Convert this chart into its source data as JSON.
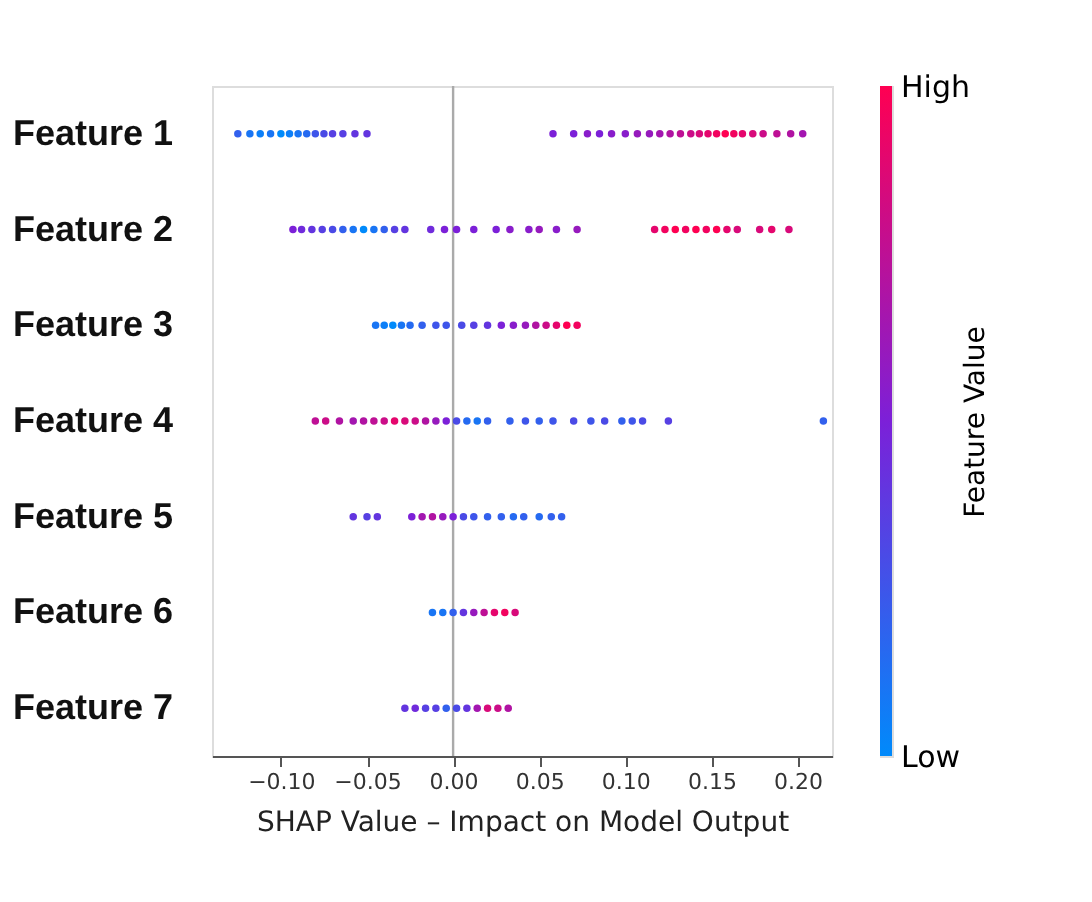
{
  "chart_data": {
    "type": "scatter",
    "orientation": "horizontal",
    "xlabel": "SHAP Value – Impact on Model Output",
    "clabel": "Feature Value",
    "categories": [
      "Feature 1",
      "Feature 2",
      "Feature 3",
      "Feature 4",
      "Feature 5",
      "Feature 6",
      "Feature 7"
    ],
    "xlim": [
      -0.14,
      0.22
    ],
    "xticks": [
      {
        "value": -0.1,
        "label": "−0.10"
      },
      {
        "value": -0.05,
        "label": "−0.05"
      },
      {
        "value": 0,
        "label": "0.00"
      },
      {
        "value": 0.05,
        "label": "0.05"
      },
      {
        "value": 0.1,
        "label": "0.10"
      },
      {
        "value": 0.15,
        "label": "0.15"
      },
      {
        "value": 0.2,
        "label": "0.20"
      }
    ],
    "clim": [
      0,
      1
    ],
    "cticks": [
      {
        "value": 0,
        "label": "Low"
      },
      {
        "value": 1,
        "label": "High"
      }
    ],
    "ref_lines": [
      {
        "axis": "x",
        "value": 0,
        "color": "#aaaaaa"
      }
    ],
    "grid": false,
    "marker": "circle",
    "series": [
      {
        "x": [
          "Feature 1",
          "Feature 1",
          "Feature 1",
          "Feature 1",
          "Feature 1",
          "Feature 1",
          "Feature 1",
          "Feature 1",
          "Feature 1",
          "Feature 1",
          "Feature 1",
          "Feature 1",
          "Feature 1",
          "Feature 1",
          "Feature 1",
          "Feature 1",
          "Feature 1",
          "Feature 1",
          "Feature 1",
          "Feature 1",
          "Feature 1",
          "Feature 1",
          "Feature 1",
          "Feature 1",
          "Feature 1",
          "Feature 1",
          "Feature 1",
          "Feature 1",
          "Feature 1",
          "Feature 1",
          "Feature 1",
          "Feature 1",
          "Feature 1",
          "Feature 1",
          "Feature 1",
          "Feature 1",
          "Feature 1"
        ],
        "values": [
          -0.125,
          -0.118,
          -0.112,
          -0.106,
          -0.1,
          -0.095,
          -0.09,
          -0.085,
          -0.08,
          -0.075,
          -0.07,
          -0.064,
          -0.057,
          -0.05,
          0.058,
          0.07,
          0.078,
          0.085,
          0.092,
          0.1,
          0.107,
          0.114,
          0.12,
          0.126,
          0.132,
          0.138,
          0.143,
          0.148,
          0.153,
          0.158,
          0.163,
          0.168,
          0.174,
          0.18,
          0.188,
          0.196,
          0.203
        ],
        "colors": [
          "#3260ed",
          "#1975f4",
          "#0c7ff8",
          "#1975f4",
          "#008afb",
          "#0c7ff8",
          "#1975f4",
          "#256af1",
          "#3e55ea",
          "#4a4ae6",
          "#5740e3",
          "#5740e3",
          "#6335df",
          "#6335df",
          "#7c20d8",
          "#7c20d8",
          "#891dcb",
          "#7c20d8",
          "#891dcb",
          "#891dcb",
          "#961abd",
          "#961abd",
          "#a316b0",
          "#b013a2",
          "#be1095",
          "#cb0d88",
          "#d80a7a",
          "#e5066d",
          "#f2035f",
          "#ff0052",
          "#f2035f",
          "#e5066d",
          "#d80a7a",
          "#cb0d88",
          "#be1095",
          "#b013a2",
          "#a316b0"
        ]
      },
      {
        "x": [
          "Feature 2",
          "Feature 2",
          "Feature 2",
          "Feature 2",
          "Feature 2",
          "Feature 2",
          "Feature 2",
          "Feature 2",
          "Feature 2",
          "Feature 2",
          "Feature 2",
          "Feature 2",
          "Feature 2",
          "Feature 2",
          "Feature 2",
          "Feature 2",
          "Feature 2",
          "Feature 2",
          "Feature 2",
          "Feature 2",
          "Feature 2",
          "Feature 2",
          "Feature 2",
          "Feature 2",
          "Feature 2",
          "Feature 2",
          "Feature 2",
          "Feature 2",
          "Feature 2",
          "Feature 2",
          "Feature 2",
          "Feature 2",
          "Feature 2",
          "Feature 2"
        ],
        "values": [
          -0.093,
          -0.088,
          -0.082,
          -0.076,
          -0.07,
          -0.064,
          -0.058,
          -0.052,
          -0.046,
          -0.04,
          -0.034,
          -0.028,
          -0.013,
          -0.005,
          0.002,
          0.012,
          0.025,
          0.033,
          0.044,
          0.05,
          0.06,
          0.072,
          0.117,
          0.123,
          0.129,
          0.135,
          0.141,
          0.147,
          0.153,
          0.159,
          0.165,
          0.178,
          0.185,
          0.195
        ],
        "colors": [
          "#7c20d8",
          "#702bdc",
          "#6335df",
          "#5740e3",
          "#4a4ae6",
          "#3260ed",
          "#1975f4",
          "#008afb",
          "#1975f4",
          "#3260ed",
          "#5740e3",
          "#6335df",
          "#702bdc",
          "#7c20d8",
          "#7c20d8",
          "#7c20d8",
          "#7c20d8",
          "#891dcb",
          "#891dcb",
          "#961abd",
          "#891dcb",
          "#961abd",
          "#e5066d",
          "#f2035f",
          "#ff0052",
          "#f2035f",
          "#ff0052",
          "#f2035f",
          "#ff0052",
          "#e5066d",
          "#d80a7a",
          "#d80a7a",
          "#e5066d",
          "#d80a7a"
        ]
      },
      {
        "x": [
          "Feature 3",
          "Feature 3",
          "Feature 3",
          "Feature 3",
          "Feature 3",
          "Feature 3",
          "Feature 3",
          "Feature 3",
          "Feature 3",
          "Feature 3",
          "Feature 3",
          "Feature 3",
          "Feature 3",
          "Feature 3",
          "Feature 3",
          "Feature 3",
          "Feature 3",
          "Feature 3",
          "Feature 3"
        ],
        "values": [
          -0.045,
          -0.04,
          -0.035,
          -0.03,
          -0.025,
          -0.018,
          -0.01,
          -0.004,
          0.005,
          0.012,
          0.02,
          0.028,
          0.035,
          0.042,
          0.048,
          0.054,
          0.06,
          0.066,
          0.072
        ],
        "colors": [
          "#1975f4",
          "#0c7ff8",
          "#008afb",
          "#1975f4",
          "#256af1",
          "#3260ed",
          "#3e55ea",
          "#3e55ea",
          "#4a4ae6",
          "#5740e3",
          "#6335df",
          "#7c20d8",
          "#891dcb",
          "#961abd",
          "#b013a2",
          "#cb0d88",
          "#e5066d",
          "#ff0052",
          "#f2035f"
        ]
      },
      {
        "x": [
          "Feature 4",
          "Feature 4",
          "Feature 4",
          "Feature 4",
          "Feature 4",
          "Feature 4",
          "Feature 4",
          "Feature 4",
          "Feature 4",
          "Feature 4",
          "Feature 4",
          "Feature 4",
          "Feature 4",
          "Feature 4",
          "Feature 4",
          "Feature 4",
          "Feature 4",
          "Feature 4",
          "Feature 4",
          "Feature 4",
          "Feature 4",
          "Feature 4",
          "Feature 4",
          "Feature 4",
          "Feature 4",
          "Feature 4",
          "Feature 4",
          "Feature 4",
          "Feature 4"
        ],
        "values": [
          -0.08,
          -0.074,
          -0.066,
          -0.058,
          -0.052,
          -0.046,
          -0.04,
          -0.034,
          -0.028,
          -0.022,
          -0.016,
          -0.01,
          -0.004,
          0.002,
          0.008,
          0.014,
          0.02,
          0.033,
          0.042,
          0.05,
          0.058,
          0.07,
          0.08,
          0.088,
          0.098,
          0.104,
          0.11,
          0.125,
          0.215
        ],
        "colors": [
          "#be1095",
          "#cb0d88",
          "#b013a2",
          "#a316b0",
          "#b013a2",
          "#be1095",
          "#cb0d88",
          "#e5066d",
          "#d80a7a",
          "#cb0d88",
          "#b013a2",
          "#961abd",
          "#7c20d8",
          "#4a4ae6",
          "#256af1",
          "#1975f4",
          "#3260ed",
          "#3260ed",
          "#3e55ea",
          "#3260ed",
          "#3e55ea",
          "#4a4ae6",
          "#3e55ea",
          "#4a4ae6",
          "#3260ed",
          "#3e55ea",
          "#4a4ae6",
          "#5740e3",
          "#3260ed"
        ]
      },
      {
        "x": [
          "Feature 5",
          "Feature 5",
          "Feature 5",
          "Feature 5",
          "Feature 5",
          "Feature 5",
          "Feature 5",
          "Feature 5",
          "Feature 5",
          "Feature 5",
          "Feature 5",
          "Feature 5",
          "Feature 5",
          "Feature 5",
          "Feature 5",
          "Feature 5",
          "Feature 5"
        ],
        "values": [
          -0.058,
          -0.05,
          -0.044,
          -0.024,
          -0.018,
          -0.012,
          -0.006,
          0,
          0.006,
          0.012,
          0.02,
          0.028,
          0.035,
          0.041,
          0.05,
          0.057,
          0.063
        ],
        "colors": [
          "#6335df",
          "#5740e3",
          "#6335df",
          "#7c20d8",
          "#a316b0",
          "#b013a2",
          "#961abd",
          "#7c20d8",
          "#4a4ae6",
          "#3e55ea",
          "#3260ed",
          "#3260ed",
          "#256af1",
          "#3260ed",
          "#256af1",
          "#3260ed",
          "#3260ed"
        ]
      },
      {
        "x": [
          "Feature 6",
          "Feature 6",
          "Feature 6",
          "Feature 6",
          "Feature 6",
          "Feature 6",
          "Feature 6",
          "Feature 6",
          "Feature 6"
        ],
        "values": [
          -0.012,
          -0.006,
          0,
          0.006,
          0.012,
          0.018,
          0.024,
          0.03,
          0.036
        ],
        "colors": [
          "#1975f4",
          "#1975f4",
          "#3260ed",
          "#6335df",
          "#961abd",
          "#be1095",
          "#e5066d",
          "#f2035f",
          "#d80a7a"
        ]
      },
      {
        "x": [
          "Feature 7",
          "Feature 7",
          "Feature 7",
          "Feature 7",
          "Feature 7",
          "Feature 7",
          "Feature 7",
          "Feature 7",
          "Feature 7",
          "Feature 7",
          "Feature 7"
        ],
        "values": [
          -0.028,
          -0.022,
          -0.016,
          -0.01,
          -0.004,
          0.002,
          0.008,
          0.014,
          0.02,
          0.026,
          0.032
        ],
        "colors": [
          "#6335df",
          "#702bdc",
          "#5740e3",
          "#5740e3",
          "#3260ed",
          "#4a4ae6",
          "#6335df",
          "#a316b0",
          "#d80a7a",
          "#cb0d88",
          "#b013a2"
        ]
      }
    ]
  }
}
